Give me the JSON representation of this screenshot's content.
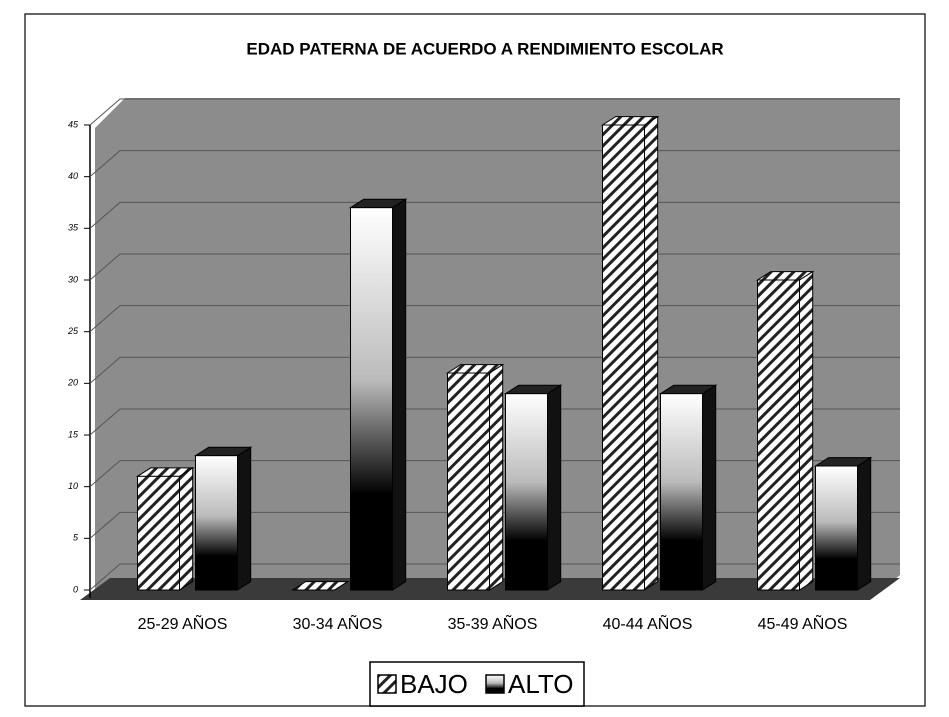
{
  "chart_data": {
    "type": "bar",
    "title": "EDAD PATERNA DE ACUERDO A RENDIMIENTO ESCOLAR",
    "categories": [
      "25-29 AÑOS",
      "30-34 AÑOS",
      "35-39 AÑOS",
      "40-44 AÑOS",
      "45-49 AÑOS"
    ],
    "series": [
      {
        "name": "BAJO",
        "color": "#ffffff",
        "values": [
          11,
          0,
          21,
          45,
          30
        ]
      },
      {
        "name": "ALTO",
        "color": "#000000",
        "values": [
          13,
          37,
          19,
          19,
          12
        ]
      }
    ],
    "ylim": [
      0,
      45
    ],
    "yticks": [
      0,
      5,
      10,
      15,
      20,
      25,
      30,
      35,
      40,
      45
    ],
    "grid": true,
    "legend": "bottom"
  }
}
